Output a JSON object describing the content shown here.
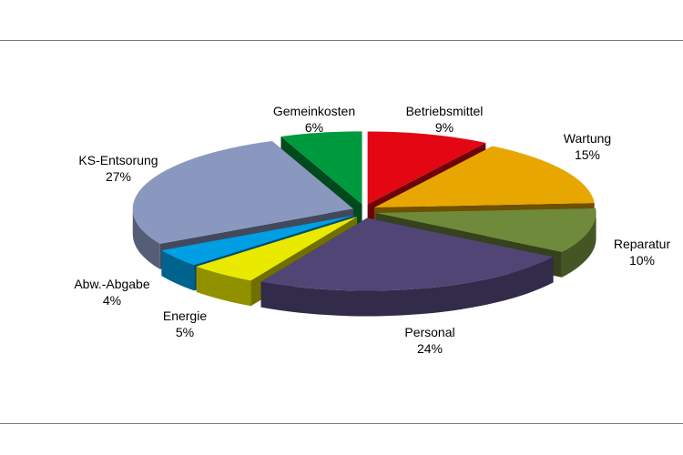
{
  "chart_data": {
    "type": "pie",
    "title": "",
    "legend": "none",
    "slices": [
      {
        "label": "Betriebsmittel",
        "value": 9,
        "value_label": "9%",
        "color": "#e30613"
      },
      {
        "label": "Wartung",
        "value": 15,
        "value_label": "15%",
        "color": "#e8a600"
      },
      {
        "label": "Reparatur",
        "value": 10,
        "value_label": "10%",
        "color": "#6e8a3a"
      },
      {
        "label": "Personal",
        "value": 24,
        "value_label": "24%",
        "color": "#514576"
      },
      {
        "label": "Energie",
        "value": 5,
        "value_label": "5%",
        "color": "#eaea00"
      },
      {
        "label": "Abw.-Abgabe",
        "value": 4,
        "value_label": "4%",
        "color": "#009fe3"
      },
      {
        "label": "KS-Entsorung",
        "value": 27,
        "value_label": "27%",
        "color": "#8a98c0"
      },
      {
        "label": "Gemeinkosten",
        "value": 6,
        "value_label": "6%",
        "color": "#009a3e"
      }
    ]
  }
}
